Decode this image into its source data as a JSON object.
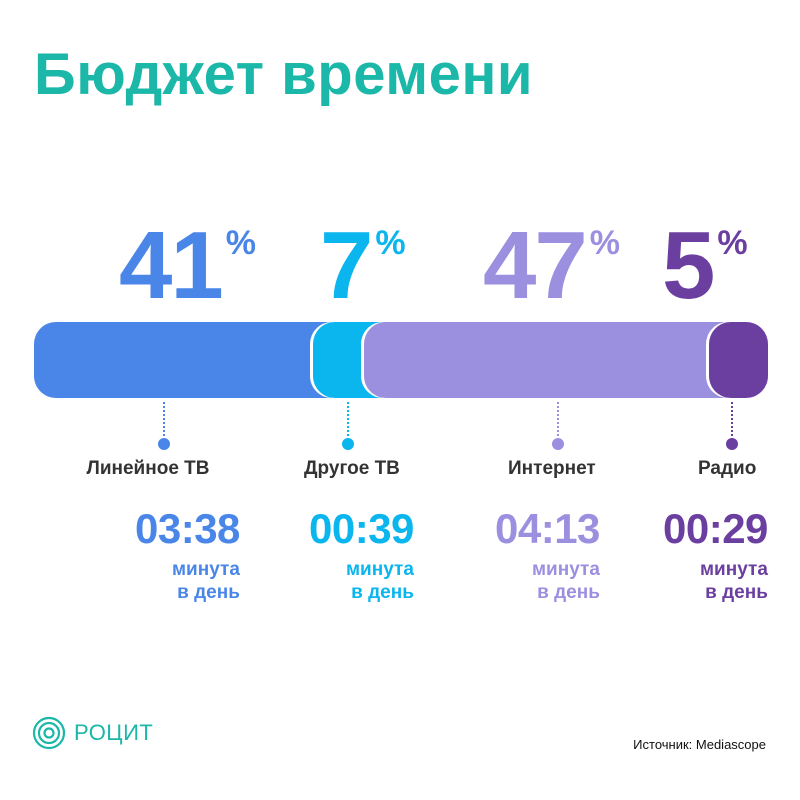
{
  "title": "Бюджет времени",
  "chart_data": {
    "type": "bar",
    "orientation": "horizontal-stacked",
    "categories": [
      "Линейное ТВ",
      "Другое ТВ",
      "Интернет",
      "Радио"
    ],
    "values": [
      41,
      7,
      47,
      5
    ],
    "value_suffix": "%",
    "time_per_day": [
      "03:38",
      "00:39",
      "04:13",
      "00:29"
    ],
    "time_unit": "минута в день",
    "time_unit_lines": [
      "минута",
      "в день"
    ],
    "colors": [
      "#4a86e8",
      "#0bb5ee",
      "#9b8fe0",
      "#6b3fa0"
    ]
  },
  "logo": {
    "name": "РОЦИТ",
    "icon": "concentric-circles-icon",
    "color": "#1bb7a8"
  },
  "source": "Источник: Mediascope",
  "accent_color": "#1bb7a8"
}
